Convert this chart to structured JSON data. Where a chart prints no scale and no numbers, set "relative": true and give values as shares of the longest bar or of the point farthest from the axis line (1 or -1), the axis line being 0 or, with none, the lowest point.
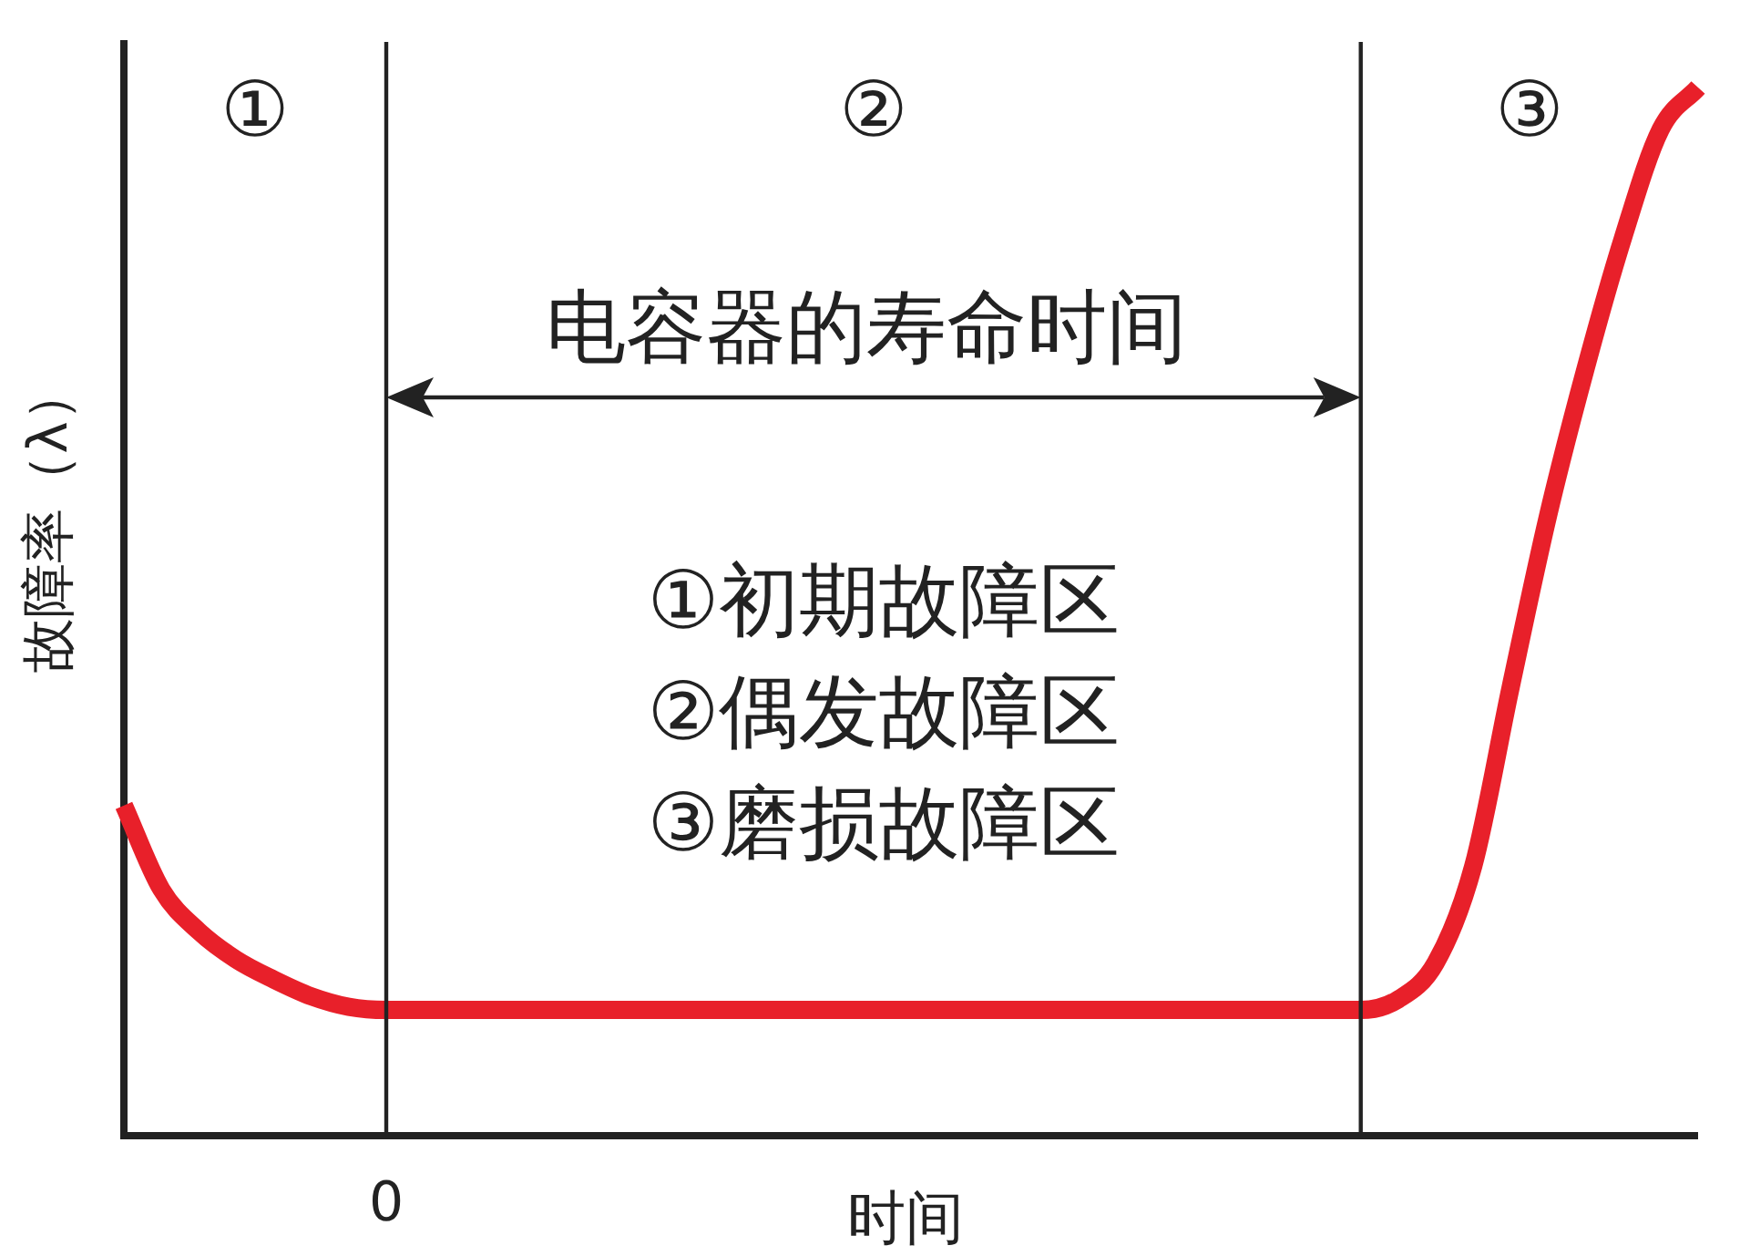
{
  "chart_data": {
    "type": "line",
    "relative": true,
    "xlabel": "时间",
    "ylabel": "故障率（λ）",
    "categories": [
      null,
      null,
      null,
      null,
      null,
      null,
      null,
      null,
      null,
      null,
      null,
      null,
      null,
      null,
      null,
      null,
      null,
      null,
      null,
      null,
      null,
      null,
      null,
      null,
      null,
      null,
      null,
      null,
      null,
      null,
      null,
      null,
      null,
      null,
      null,
      null,
      null,
      null,
      null,
      null,
      null,
      null,
      null
    ],
    "series": [
      {
        "color": "#e8202a",
        "values": [
          0.315,
          0.235,
          0.195,
          0.168,
          0.149,
          0.133,
          0.123,
          0.12,
          0.12,
          0.12,
          0.12,
          0.12,
          0.12,
          0.12,
          0.12,
          0.12,
          0.12,
          0.12,
          0.12,
          0.12,
          0.12,
          0.12,
          0.12,
          0.12,
          0.12,
          0.12,
          0.12,
          0.12,
          0.12,
          0.12,
          0.12,
          0.12,
          0.12,
          0.12,
          0.13,
          0.165,
          0.257,
          0.428,
          0.592,
          0.732,
          0.857,
          0.96,
          1
        ]
      }
    ],
    "annotations": [
      "①",
      "②",
      "③",
      "0",
      "电容器的寿命时间",
      "①初期故障区",
      "②偶发故障区",
      "③磨损故障区"
    ]
  }
}
